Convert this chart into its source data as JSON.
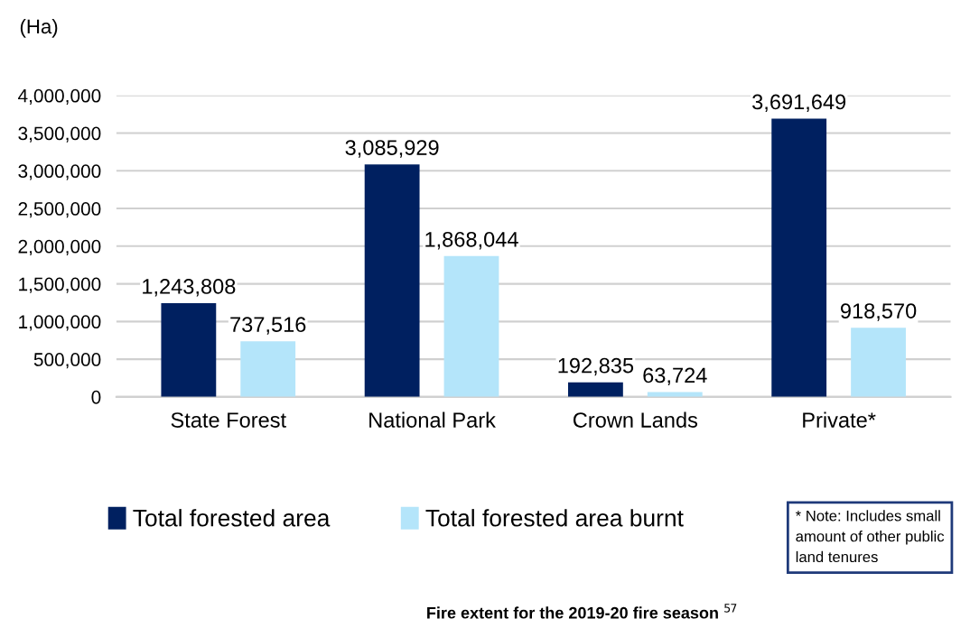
{
  "chart_data": {
    "type": "bar",
    "ylabel": "(Ha)",
    "categories": [
      "State Forest",
      "National Park",
      "Crown Lands",
      "Private*"
    ],
    "series": [
      {
        "name": "Total forested area",
        "color": "#002060",
        "values": [
          1243808,
          3085929,
          192835,
          3691649
        ],
        "value_labels": [
          "1,243,808",
          "3,085,929",
          "192,835",
          "3,691,649"
        ]
      },
      {
        "name": "Total forested area burnt",
        "color": "#b4e5fa",
        "values": [
          737516,
          1868044,
          63724,
          918570
        ],
        "value_labels": [
          "737,516",
          "1,868,044",
          "63,724",
          "918,570"
        ]
      }
    ],
    "ylim": [
      0,
      4000000
    ],
    "yticks": [
      {
        "value": 0,
        "label": "0"
      },
      {
        "value": 500000,
        "label": "500,000"
      },
      {
        "value": 1000000,
        "label": "1,000,000"
      },
      {
        "value": 1500000,
        "label": "1,500,000"
      },
      {
        "value": 2000000,
        "label": "2,000,000"
      },
      {
        "value": 2500000,
        "label": "2,500,000"
      },
      {
        "value": 3000000,
        "label": "3,000,000"
      },
      {
        "value": 3500000,
        "label": "3,500,000"
      },
      {
        "value": 4000000,
        "label": "4,000,000"
      }
    ],
    "grid": "y",
    "legend": "bottom",
    "annotations": [
      "* Note: Includes small amount of other public land tenures",
      "Fire extent for the 2019-20 fire season $^{57}$"
    ]
  }
}
